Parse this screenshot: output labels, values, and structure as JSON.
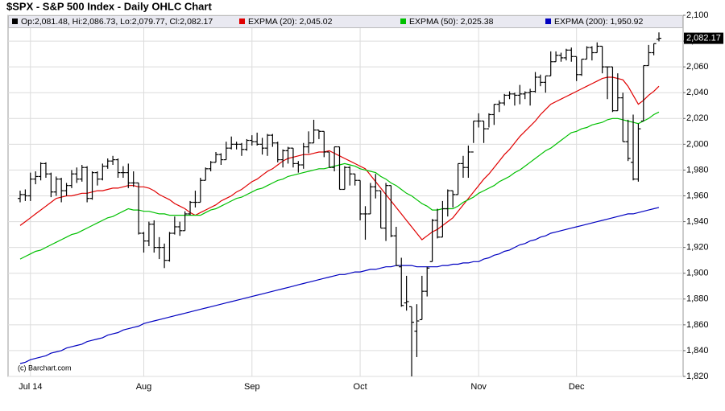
{
  "chart_data": {
    "type": "ohlc",
    "title": "$SPX - S&P 500 Index - Daily OHLC Chart",
    "ohlc_legend": "Op:2,081.48, Hi:2,086.73, Lo:2,079.77, Cl:2,082.17",
    "price_tag": "2,082.17",
    "watermark": "(c) Barchart.com",
    "categories": [
      null,
      null,
      "Jul 14",
      null,
      null,
      null,
      null,
      null,
      null,
      null,
      null,
      null,
      null,
      null,
      null,
      null,
      null,
      null,
      null,
      null,
      null,
      null,
      null,
      null,
      "Aug",
      null,
      null,
      null,
      null,
      null,
      null,
      null,
      null,
      null,
      null,
      null,
      null,
      null,
      null,
      null,
      null,
      null,
      null,
      null,
      null,
      "Sep",
      null,
      null,
      null,
      null,
      null,
      null,
      null,
      null,
      null,
      null,
      null,
      null,
      null,
      null,
      null,
      null,
      null,
      null,
      null,
      null,
      "Oct",
      null,
      null,
      null,
      null,
      null,
      null,
      null,
      null,
      null,
      null,
      null,
      null,
      null,
      null,
      null,
      null,
      null,
      null,
      null,
      null,
      null,
      null,
      "Nov",
      null,
      null,
      null,
      null,
      null,
      null,
      null,
      null,
      null,
      null,
      null,
      null,
      null,
      null,
      null,
      null,
      null,
      null,
      "Dec",
      null,
      null,
      null,
      null,
      null,
      null,
      null,
      null,
      null,
      null,
      null,
      null,
      null,
      null,
      null,
      null
    ],
    "ohlc": {
      "color": "#000000",
      "open": [
        1958,
        1961,
        1960,
        1973,
        1975,
        1985,
        1977,
        1963,
        1973,
        1964,
        1968,
        1977,
        1973,
        1982,
        1958,
        1978,
        1973,
        1983,
        1987,
        1988,
        1978,
        1978,
        1970,
        1970,
        1931,
        1925,
        1938,
        1920,
        1920,
        1910,
        1931,
        1936,
        1933,
        1946,
        1955,
        1955,
        1972,
        1981,
        1986,
        1992,
        1988,
        1997,
        2000,
        2000,
        1996,
        2003,
        2002,
        2000,
        1997,
        2007,
        2001,
        1988,
        1995,
        1997,
        1985,
        1984,
        1998,
        2001,
        2011,
        2010,
        1994,
        1982,
        1998,
        1965,
        1982,
        1977,
        1972,
        1946,
        1946,
        1967,
        1964,
        1935,
        1968,
        1929,
        1905,
        1877,
        1874,
        1855,
        1864,
        1886,
        1909,
        1941,
        1928,
        1950,
        1964,
        1961,
        1985,
        1982,
        1994,
        2018,
        2018,
        2012,
        2023,
        2031,
        2032,
        2038,
        2039,
        2038,
        2039,
        2040,
        2041,
        2052,
        2048,
        2053,
        2064,
        2069,
        2067,
        2073,
        2068,
        2054,
        2066,
        2075,
        2071,
        2076,
        2060,
        2060,
        2026,
        2036,
        2002,
        1986,
        1973,
        2018,
        2061,
        2071,
        2081.48
      ],
      "high": [
        1964,
        1965,
        1978,
        1979,
        1986,
        1986,
        1978,
        1975,
        1974,
        1970,
        1980,
        1982,
        1984,
        1983,
        1979,
        1979,
        1985,
        1989,
        1991,
        1989,
        1983,
        1985,
        1979,
        1970,
        1932,
        1940,
        1941,
        1928,
        1923,
        1932,
        1944,
        1940,
        1948,
        1956,
        1964,
        1974,
        1982,
        1987,
        1994,
        1993,
        2002,
        2006,
        2002,
        2001,
        2004,
        2007,
        2009,
        2005,
        2008,
        2008,
        2002,
        1996,
        1998,
        1997,
        1987,
        2001,
        2010,
        2019,
        2011,
        2010,
        1994,
        1998,
        1998,
        1983,
        1983,
        1977,
        1972,
        1952,
        1970,
        1977,
        1964,
        1970,
        1968,
        1936,
        1912,
        1898,
        1874,
        1876,
        1898,
        1905,
        1942,
        1950,
        1956,
        1965,
        1964,
        1985,
        1991,
        1999,
        2018,
        2024,
        2018,
        2024,
        2031,
        2034,
        2039,
        2041,
        2040,
        2046,
        2041,
        2043,
        2056,
        2054,
        2053,
        2072,
        2072,
        2071,
        2074,
        2075,
        2068,
        2066,
        2076,
        2076,
        2079,
        2076,
        2060,
        2060,
        2055,
        2040,
        2019,
        2023,
        2016,
        2061,
        2077,
        2078,
        2086.73
      ],
      "low": [
        1955,
        1956,
        1956,
        1969,
        1972,
        1974,
        1959,
        1960,
        1955,
        1960,
        1966,
        1970,
        1971,
        1955,
        1957,
        1968,
        1972,
        1981,
        1984,
        1974,
        1974,
        1966,
        1967,
        1930,
        1916,
        1921,
        1916,
        1911,
        1904,
        1909,
        1930,
        1929,
        1933,
        1945,
        1951,
        1955,
        1972,
        1979,
        1986,
        1984,
        1988,
        1996,
        1996,
        1991,
        1995,
        1999,
        1999,
        1992,
        1991,
        1998,
        1986,
        1982,
        1985,
        1982,
        1978,
        1981,
        1993,
        2001,
        2004,
        1990,
        1982,
        1979,
        1965,
        1965,
        1968,
        1968,
        1941,
        1926,
        1946,
        1958,
        1935,
        1925,
        1928,
        1906,
        1874,
        1871,
        1820,
        1835,
        1864,
        1882,
        1909,
        1927,
        1928,
        1944,
        1951,
        1961,
        1974,
        1974,
        2001,
        2013,
        2001,
        2013,
        2015,
        2025,
        2030,
        2035,
        2030,
        2031,
        2035,
        2030,
        2040,
        2045,
        2040,
        2053,
        2064,
        2064,
        2065,
        2064,
        2049,
        2053,
        2066,
        2065,
        2071,
        2055,
        2035,
        2025,
        2026,
        2002,
        1987,
        1972,
        1971,
        2018,
        2061,
        2069,
        2079.77
      ],
      "close": [
        1961,
        1960,
        1973,
        1975,
        1985,
        1977,
        1963,
        1973,
        1964,
        1968,
        1977,
        1973,
        1982,
        1958,
        1978,
        1973,
        1983,
        1987,
        1988,
        1978,
        1978,
        1970,
        1970,
        1931,
        1925,
        1938,
        1920,
        1920,
        1910,
        1931,
        1936,
        1933,
        1946,
        1955,
        1955,
        1972,
        1981,
        1986,
        1992,
        1988,
        1997,
        2000,
        2000,
        1996,
        2003,
        2002,
        2000,
        1997,
        2007,
        2001,
        1988,
        1995,
        1997,
        1985,
        1984,
        1998,
        2001,
        2011,
        2010,
        1994,
        1982,
        1998,
        1965,
        1982,
        1977,
        1972,
        1946,
        1946,
        1967,
        1964,
        1935,
        1968,
        1929,
        1906,
        1875,
        1878,
        1862,
        1863,
        1886,
        1904,
        1941,
        1928,
        1950,
        1964,
        1961,
        1985,
        1982,
        1994,
        2018,
        2018,
        2012,
        2023,
        2031,
        2032,
        2038,
        2039,
        2038,
        2039,
        2040,
        2041,
        2052,
        2048,
        2053,
        2064,
        2069,
        2067,
        2073,
        2068,
        2054,
        2066,
        2075,
        2071,
        2076,
        2060,
        2060,
        2026,
        2036,
        2002,
        1989,
        1973,
        2012,
        2061,
        2071,
        2078,
        2082.17
      ]
    },
    "series": [
      {
        "name": "EXPMA (20): 2,045.02",
        "color": "#e00000",
        "values": [
          1937,
          1940,
          1943,
          1946,
          1949,
          1952,
          1955,
          1958,
          1959,
          1960,
          1960,
          1961,
          1962,
          1962,
          1963,
          1964,
          1964,
          1965,
          1966,
          1966,
          1967,
          1968,
          1968,
          1967,
          1967,
          1966,
          1964,
          1961,
          1959,
          1957,
          1954,
          1952,
          1950,
          1947,
          1945,
          1947,
          1949,
          1951,
          1953,
          1956,
          1958,
          1960,
          1963,
          1965,
          1968,
          1971,
          1973,
          1976,
          1979,
          1981,
          1984,
          1987,
          1989,
          1990,
          1991,
          1992,
          1992,
          1993,
          1994,
          1994,
          1995,
          1993,
          1991,
          1989,
          1987,
          1985,
          1983,
          1981,
          1976,
          1971,
          1966,
          1961,
          1956,
          1951,
          1946,
          1941,
          1936,
          1931,
          1926,
          1929,
          1932,
          1934,
          1937,
          1940,
          1943,
          1948,
          1953,
          1958,
          1963,
          1968,
          1973,
          1977,
          1982,
          1987,
          1992,
          1996,
          2001,
          2006,
          2010,
          2014,
          2018,
          2023,
          2027,
          2031,
          2033,
          2035,
          2037,
          2039,
          2041,
          2043,
          2045,
          2047,
          2049,
          2051,
          2052,
          2052,
          2051,
          2050,
          2045,
          2038,
          2031,
          2034,
          2038,
          2041,
          2045
        ]
      },
      {
        "name": "EXPMA (50): 2,025.38",
        "color": "#00c000",
        "values": [
          1911,
          1913,
          1915,
          1917,
          1918,
          1920,
          1922,
          1924,
          1926,
          1928,
          1930,
          1931,
          1933,
          1935,
          1937,
          1939,
          1941,
          1943,
          1944,
          1946,
          1948,
          1950,
          1949,
          1949,
          1948,
          1948,
          1947,
          1946,
          1946,
          1945,
          1945,
          1945,
          1945,
          1945,
          1945,
          1945,
          1947,
          1949,
          1950,
          1952,
          1954,
          1956,
          1958,
          1959,
          1961,
          1963,
          1965,
          1966,
          1968,
          1970,
          1972,
          1973,
          1975,
          1976,
          1977,
          1978,
          1979,
          1980,
          1981,
          1981,
          1982,
          1983,
          1984,
          1985,
          1984,
          1983,
          1981,
          1980,
          1979,
          1978,
          1975,
          1973,
          1970,
          1968,
          1965,
          1962,
          1960,
          1957,
          1954,
          1952,
          1949,
          1949,
          1950,
          1950,
          1950,
          1952,
          1955,
          1957,
          1959,
          1962,
          1964,
          1966,
          1968,
          1971,
          1973,
          1975,
          1978,
          1980,
          1983,
          1986,
          1989,
          1992,
          1995,
          1997,
          2000,
          2003,
          2006,
          2009,
          2010,
          2012,
          2013,
          2015,
          2016,
          2017,
          2019,
          2020,
          2020,
          2019,
          2018,
          2017,
          2016,
          2018,
          2020,
          2023,
          2025
        ]
      },
      {
        "name": "EXPMA (200): 1,950.92",
        "color": "#0000c0",
        "values": [
          1830,
          1831,
          1833,
          1834,
          1835,
          1836,
          1838,
          1839,
          1840,
          1842,
          1843,
          1844,
          1845,
          1847,
          1848,
          1849,
          1850,
          1852,
          1853,
          1854,
          1856,
          1857,
          1858,
          1859,
          1861,
          1862,
          1863,
          1864,
          1865,
          1866,
          1867,
          1868,
          1869,
          1870,
          1871,
          1872,
          1873,
          1874,
          1875,
          1876,
          1877,
          1878,
          1879,
          1880,
          1881,
          1882,
          1883,
          1884,
          1885,
          1886,
          1887,
          1888,
          1889,
          1890,
          1891,
          1892,
          1893,
          1894,
          1895,
          1896,
          1897,
          1898,
          1899,
          1899,
          1900,
          1901,
          1901,
          1902,
          1903,
          1903,
          1904,
          1905,
          1905,
          1906,
          1906,
          1906,
          1906,
          1905,
          1905,
          1905,
          1905,
          1905,
          1906,
          1906,
          1907,
          1907,
          1908,
          1908,
          1909,
          1909,
          1911,
          1912,
          1914,
          1915,
          1917,
          1918,
          1920,
          1922,
          1923,
          1925,
          1926,
          1928,
          1929,
          1931,
          1932,
          1933,
          1934,
          1935,
          1936,
          1937,
          1938,
          1939,
          1940,
          1941,
          1942,
          1943,
          1944,
          1945,
          1946,
          1946,
          1947,
          1948,
          1949,
          1950,
          1951
        ]
      }
    ],
    "ylim": [
      1820,
      2100
    ],
    "yticks": [
      {
        "value": 1820,
        "label": "1,820"
      },
      {
        "value": 1840,
        "label": "1,840"
      },
      {
        "value": 1860,
        "label": "1,860"
      },
      {
        "value": 1880,
        "label": "1,880"
      },
      {
        "value": 1900,
        "label": "1,900"
      },
      {
        "value": 1920,
        "label": "1,920"
      },
      {
        "value": 1940,
        "label": "1,940"
      },
      {
        "value": 1960,
        "label": "1,960"
      },
      {
        "value": 1980,
        "label": "1,980"
      },
      {
        "value": 2000,
        "label": "2,000"
      },
      {
        "value": 2020,
        "label": "2,020"
      },
      {
        "value": 2040,
        "label": "2,040"
      },
      {
        "value": 2060,
        "label": "2,060"
      },
      {
        "value": 2080,
        "label": "2,080"
      },
      {
        "value": 2100,
        "label": "2,100"
      }
    ],
    "grid": true
  }
}
